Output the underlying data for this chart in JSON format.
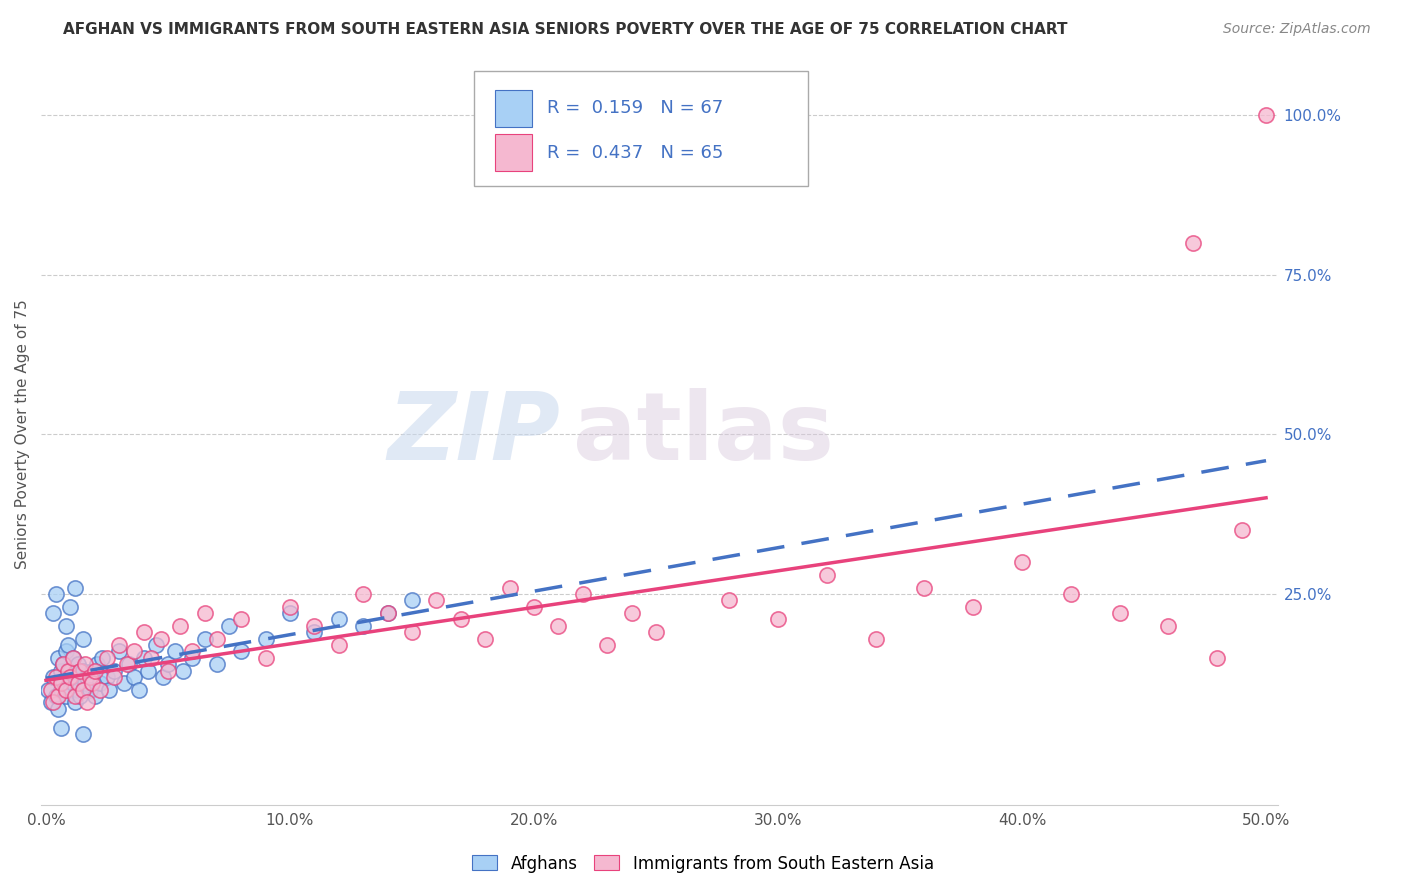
{
  "title": "AFGHAN VS IMMIGRANTS FROM SOUTH EASTERN ASIA SENIORS POVERTY OVER THE AGE OF 75 CORRELATION CHART",
  "source": "Source: ZipAtlas.com",
  "xlabel_ticks": [
    "0.0%",
    "10.0%",
    "20.0%",
    "30.0%",
    "40.0%",
    "50.0%"
  ],
  "xlabel_vals": [
    0.0,
    0.1,
    0.2,
    0.3,
    0.4,
    0.5
  ],
  "ylabel": "Seniors Poverty Over the Age of 75",
  "right_ytick_labels": [
    "100.0%",
    "75.0%",
    "50.0%",
    "25.0%"
  ],
  "right_ytick_vals": [
    1.0,
    0.75,
    0.5,
    0.25
  ],
  "xlim": [
    -0.002,
    0.505
  ],
  "ylim": [
    -0.08,
    1.08
  ],
  "blue_R": 0.159,
  "blue_N": 67,
  "pink_R": 0.437,
  "pink_N": 65,
  "blue_color": "#a8d0f5",
  "pink_color": "#f5b8d0",
  "blue_line_color": "#4472c4",
  "pink_line_color": "#e8427c",
  "watermark_zip": "ZIP",
  "watermark_atlas": "atlas",
  "legend_label_blue": "Afghans",
  "legend_label_pink": "Immigrants from South Eastern Asia",
  "blue_scatter_x": [
    0.001,
    0.002,
    0.003,
    0.004,
    0.005,
    0.005,
    0.006,
    0.006,
    0.007,
    0.007,
    0.008,
    0.008,
    0.009,
    0.009,
    0.01,
    0.01,
    0.011,
    0.011,
    0.012,
    0.012,
    0.013,
    0.013,
    0.014,
    0.015,
    0.015,
    0.016,
    0.017,
    0.018,
    0.019,
    0.02,
    0.021,
    0.022,
    0.023,
    0.025,
    0.026,
    0.028,
    0.03,
    0.032,
    0.034,
    0.036,
    0.038,
    0.04,
    0.042,
    0.045,
    0.048,
    0.05,
    0.053,
    0.056,
    0.06,
    0.065,
    0.07,
    0.075,
    0.08,
    0.09,
    0.1,
    0.11,
    0.12,
    0.13,
    0.14,
    0.15,
    0.003,
    0.004,
    0.006,
    0.008,
    0.01,
    0.012,
    0.015
  ],
  "blue_scatter_y": [
    0.1,
    0.08,
    0.12,
    0.09,
    0.15,
    0.07,
    0.13,
    0.1,
    0.11,
    0.14,
    0.16,
    0.09,
    0.12,
    0.17,
    0.1,
    0.13,
    0.11,
    0.15,
    0.08,
    0.12,
    0.1,
    0.14,
    0.09,
    0.13,
    0.18,
    0.11,
    0.12,
    0.1,
    0.13,
    0.09,
    0.14,
    0.11,
    0.15,
    0.12,
    0.1,
    0.13,
    0.16,
    0.11,
    0.14,
    0.12,
    0.1,
    0.15,
    0.13,
    0.17,
    0.12,
    0.14,
    0.16,
    0.13,
    0.15,
    0.18,
    0.14,
    0.2,
    0.16,
    0.18,
    0.22,
    0.19,
    0.21,
    0.2,
    0.22,
    0.24,
    0.22,
    0.25,
    0.04,
    0.2,
    0.23,
    0.26,
    0.03
  ],
  "pink_scatter_x": [
    0.002,
    0.003,
    0.004,
    0.005,
    0.006,
    0.007,
    0.008,
    0.009,
    0.01,
    0.011,
    0.012,
    0.013,
    0.014,
    0.015,
    0.016,
    0.017,
    0.018,
    0.019,
    0.02,
    0.022,
    0.025,
    0.028,
    0.03,
    0.033,
    0.036,
    0.04,
    0.043,
    0.047,
    0.05,
    0.055,
    0.06,
    0.065,
    0.07,
    0.08,
    0.09,
    0.1,
    0.11,
    0.12,
    0.13,
    0.14,
    0.15,
    0.16,
    0.17,
    0.18,
    0.19,
    0.2,
    0.21,
    0.22,
    0.23,
    0.24,
    0.25,
    0.28,
    0.3,
    0.32,
    0.34,
    0.36,
    0.38,
    0.4,
    0.42,
    0.44,
    0.46,
    0.47,
    0.48,
    0.49,
    0.5
  ],
  "pink_scatter_y": [
    0.1,
    0.08,
    0.12,
    0.09,
    0.11,
    0.14,
    0.1,
    0.13,
    0.12,
    0.15,
    0.09,
    0.11,
    0.13,
    0.1,
    0.14,
    0.08,
    0.12,
    0.11,
    0.13,
    0.1,
    0.15,
    0.12,
    0.17,
    0.14,
    0.16,
    0.19,
    0.15,
    0.18,
    0.13,
    0.2,
    0.16,
    0.22,
    0.18,
    0.21,
    0.15,
    0.23,
    0.2,
    0.17,
    0.25,
    0.22,
    0.19,
    0.24,
    0.21,
    0.18,
    0.26,
    0.23,
    0.2,
    0.25,
    0.17,
    0.22,
    0.19,
    0.24,
    0.21,
    0.28,
    0.18,
    0.26,
    0.23,
    0.3,
    0.25,
    0.22,
    0.2,
    0.8,
    0.15,
    0.35,
    1.0
  ],
  "title_fontsize": 11,
  "source_fontsize": 10,
  "ylabel_fontsize": 11,
  "tick_fontsize": 11,
  "legend_fontsize": 12,
  "grid_color": "#cccccc",
  "bottom_border_color": "#cccccc"
}
